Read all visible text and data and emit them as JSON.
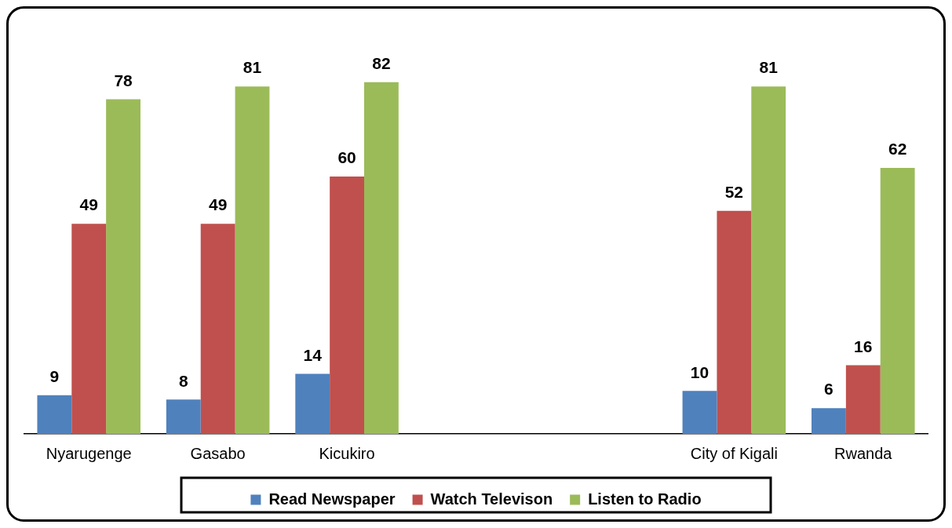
{
  "chart_data": {
    "type": "bar",
    "categories": [
      "Nyarugenge",
      "Gasabo",
      "Kicukiro",
      null,
      null,
      "City of Kigali",
      "Rwanda"
    ],
    "series": [
      {
        "name": "Read Newspaper",
        "color": "#4f81bd",
        "values": [
          9,
          8,
          14,
          null,
          null,
          10,
          6
        ]
      },
      {
        "name": "Watch Televison",
        "color": "#c0504d",
        "values": [
          49,
          49,
          60,
          null,
          null,
          52,
          16
        ]
      },
      {
        "name": "Listen to Radio",
        "color": "#9bbb59",
        "values": [
          78,
          81,
          82,
          null,
          null,
          81,
          62
        ]
      }
    ],
    "data_labels": true,
    "legend": "bottom",
    "grid": false
  }
}
